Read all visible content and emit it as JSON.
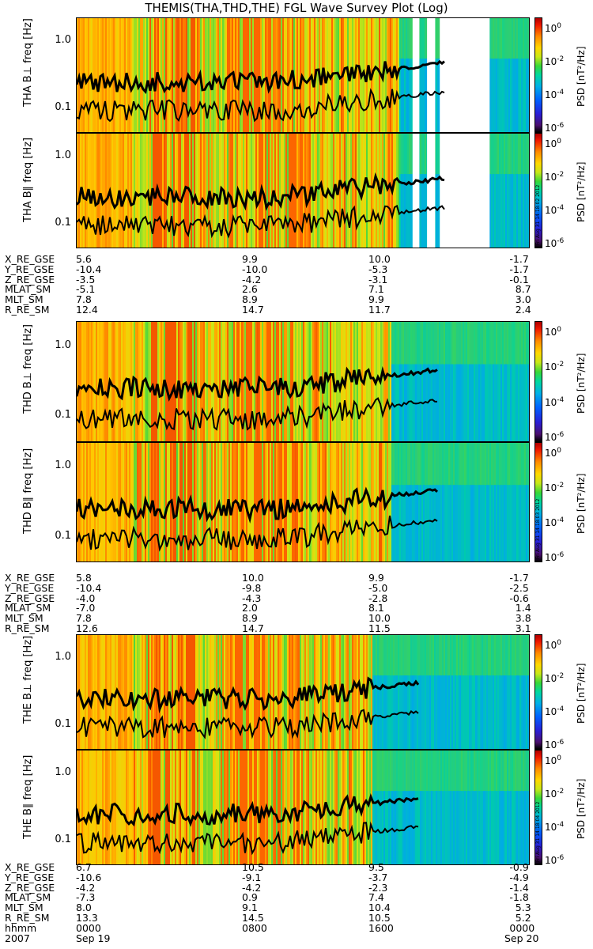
{
  "title": "THEMIS(THA,THD,THE) FGL Wave Survey Plot (Log)",
  "chart_data": {
    "type": "heatmap",
    "y_scale": "log",
    "y_ticks": [
      "1.0",
      "0.1"
    ],
    "colorbar_ticks": [
      "10",
      "10",
      "10",
      "10"
    ],
    "colorbar_exponents": [
      "0",
      "-2",
      "-4",
      "-6"
    ],
    "colorbar_label": "PSD [nT²/Hz]",
    "panels": [
      {
        "label": "THA B⊥",
        "ylabel": "freq [Hz]",
        "gaps": true,
        "stamp": ""
      },
      {
        "label": "THA B∥",
        "ylabel": "freq [Hz]",
        "gaps": true,
        "stamp": "Fri Aug 31 14:18:02 2012"
      },
      {
        "label": "THD B⊥",
        "ylabel": "freq [Hz]",
        "gaps": false,
        "stamp": ""
      },
      {
        "label": "THD B∥",
        "ylabel": "freq [Hz]",
        "gaps": false,
        "stamp": "Fri Aug 31 14:18:03 2012"
      },
      {
        "label": "THE B⊥",
        "ylabel": "freq [Hz]",
        "gaps": false,
        "stamp": ""
      },
      {
        "label": "THE B∥",
        "ylabel": "freq [Hz]",
        "gaps": false,
        "stamp": "Fri Aug 31 14:18:04 2012"
      }
    ],
    "ephemeris_blocks": [
      {
        "rows": [
          {
            "name": "X_RE_GSE",
            "values": [
              "5.6",
              "9.9",
              "10.0",
              "-1.7"
            ]
          },
          {
            "name": "Y_RE_GSE",
            "values": [
              "-10.4",
              "-10.0",
              "-5.3",
              "-1.7"
            ]
          },
          {
            "name": "Z_RE_GSE",
            "values": [
              "-3.5",
              "-4.2",
              "-3.1",
              "-0.1"
            ]
          },
          {
            "name": "MLAT_SM",
            "values": [
              "-5.1",
              "2.6",
              "7.1",
              "8.7"
            ]
          },
          {
            "name": "MLT_SM",
            "values": [
              "7.8",
              "8.9",
              "9.9",
              "3.0"
            ]
          },
          {
            "name": "R_RE_SM",
            "values": [
              "12.4",
              "14.7",
              "11.7",
              "2.4"
            ]
          }
        ]
      },
      {
        "rows": [
          {
            "name": "X_RE_GSE",
            "values": [
              "5.8",
              "10.0",
              "9.9",
              "-1.7"
            ]
          },
          {
            "name": "Y_RE_GSE",
            "values": [
              "-10.4",
              "-9.8",
              "-5.0",
              "-2.5"
            ]
          },
          {
            "name": "Z_RE_GSE",
            "values": [
              "-4.0",
              "-4.3",
              "-2.8",
              "-0.6"
            ]
          },
          {
            "name": "MLAT_SM",
            "values": [
              "-7.0",
              "2.0",
              "8.1",
              "1.4"
            ]
          },
          {
            "name": "MLT_SM",
            "values": [
              "7.8",
              "8.9",
              "10.0",
              "3.8"
            ]
          },
          {
            "name": "R_RE_SM",
            "values": [
              "12.6",
              "14.7",
              "11.5",
              "3.1"
            ]
          }
        ]
      },
      {
        "rows": [
          {
            "name": "X_RE_GSE",
            "values": [
              "6.7",
              "10.5",
              "9.5",
              "-0.9"
            ]
          },
          {
            "name": "Y_RE_GSE",
            "values": [
              "-10.6",
              "-9.1",
              "-3.7",
              "-4.9"
            ]
          },
          {
            "name": "Z_RE_GSE",
            "values": [
              "-4.2",
              "-4.2",
              "-2.3",
              "-1.4"
            ]
          },
          {
            "name": "MLAT_SM",
            "values": [
              "-7.3",
              "0.9",
              "7.4",
              "-1.8"
            ]
          },
          {
            "name": "MLT_SM",
            "values": [
              "8.0",
              "9.1",
              "10.4",
              "5.3"
            ]
          },
          {
            "name": "R_RE_SM",
            "values": [
              "13.3",
              "14.5",
              "10.5",
              "5.2"
            ]
          },
          {
            "name": "hhmm",
            "values": [
              "0000",
              "0800",
              "1600",
              "0000"
            ]
          }
        ]
      }
    ],
    "date_row": {
      "year": "2007",
      "start": "Sep 19",
      "end": "Sep 20"
    },
    "data_gap_color": "#ffffff",
    "curve_color": "#000000"
  }
}
